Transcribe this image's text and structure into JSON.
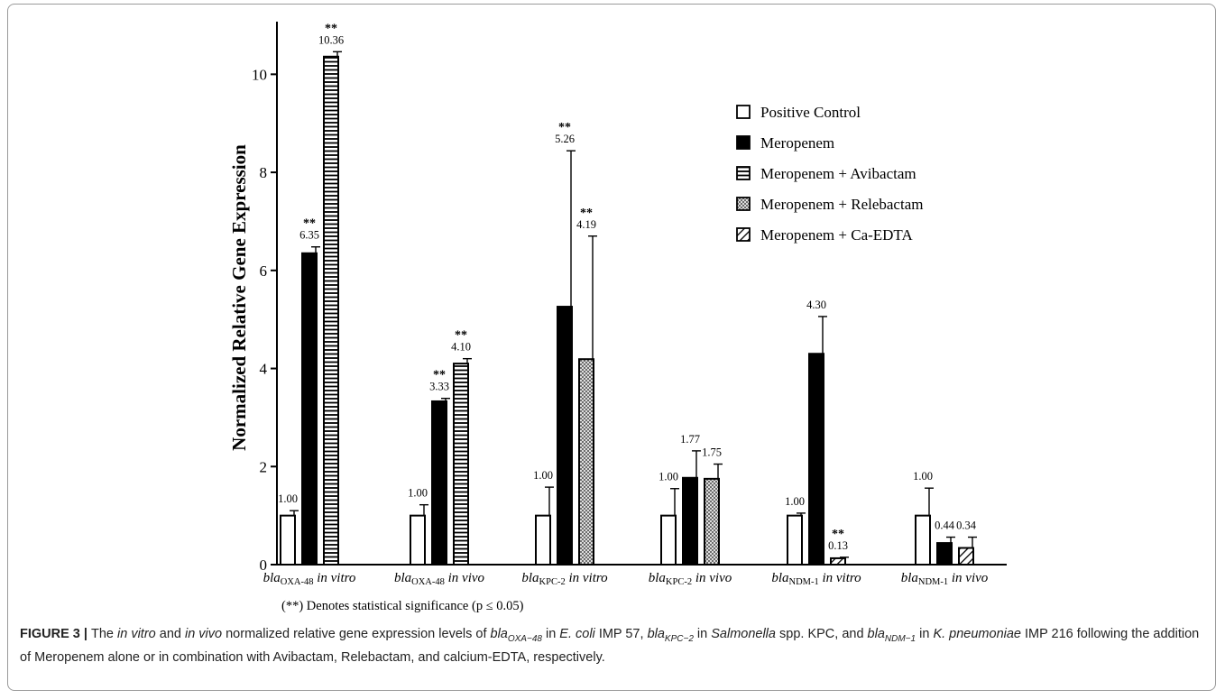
{
  "chart_data": {
    "type": "bar",
    "ylabel": "Normalized Relative Gene Expression",
    "ylim": [
      0,
      11
    ],
    "yticks": [
      0,
      2,
      4,
      6,
      8,
      10
    ],
    "grid": false,
    "legend_position": "top-right",
    "categories": [
      {
        "gene": "bla",
        "sub": "OXA-48",
        "cond": "in vitro"
      },
      {
        "gene": "bla",
        "sub": "OXA-48",
        "cond": "in vivo"
      },
      {
        "gene": "bla",
        "sub": "KPC-2",
        "cond": "in vitro"
      },
      {
        "gene": "bla",
        "sub": "KPC-2",
        "cond": "in vivo"
      },
      {
        "gene": "bla",
        "sub": "NDM-1",
        "cond": "in vitro"
      },
      {
        "gene": "bla",
        "sub": "NDM-1",
        "cond": "in vivo"
      }
    ],
    "series": [
      {
        "name": "Positive Control",
        "pattern": "empty"
      },
      {
        "name": "Meropenem",
        "pattern": "solid"
      },
      {
        "name": "Meropenem + Avibactam",
        "pattern": "hstripe"
      },
      {
        "name": "Meropenem + Relebactam",
        "pattern": "crosshatch"
      },
      {
        "name": "Meropenem + Ca-EDTA",
        "pattern": "diagonal"
      }
    ],
    "groups": [
      {
        "bars": [
          {
            "series": 0,
            "value": 1.0,
            "err": 0.1,
            "label": "1.00",
            "sig": ""
          },
          {
            "series": 1,
            "value": 6.35,
            "err": 0.13,
            "label": "6.35",
            "sig": "**"
          },
          {
            "series": 2,
            "value": 10.36,
            "err": 0.1,
            "label": "10.36",
            "sig": "**"
          }
        ]
      },
      {
        "bars": [
          {
            "series": 0,
            "value": 1.0,
            "err": 0.22,
            "label": "1.00",
            "sig": ""
          },
          {
            "series": 1,
            "value": 3.33,
            "err": 0.06,
            "label": "3.33",
            "sig": "**"
          },
          {
            "series": 2,
            "value": 4.1,
            "err": 0.1,
            "label": "4.10",
            "sig": "**"
          }
        ]
      },
      {
        "bars": [
          {
            "series": 0,
            "value": 1.0,
            "err": 0.58,
            "label": "1.00",
            "sig": ""
          },
          {
            "series": 1,
            "value": 5.26,
            "err": 3.18,
            "label": "5.26",
            "sig": "**"
          },
          {
            "series": 3,
            "value": 4.19,
            "err": 2.51,
            "label": "4.19",
            "sig": "**"
          }
        ]
      },
      {
        "bars": [
          {
            "series": 0,
            "value": 1.0,
            "err": 0.55,
            "label": "1.00",
            "sig": ""
          },
          {
            "series": 1,
            "value": 1.77,
            "err": 0.55,
            "label": "1.77",
            "sig": ""
          },
          {
            "series": 3,
            "value": 1.75,
            "err": 0.3,
            "label": "1.75",
            "sig": ""
          }
        ]
      },
      {
        "bars": [
          {
            "series": 0,
            "value": 1.0,
            "err": 0.05,
            "label": "1.00",
            "sig": ""
          },
          {
            "series": 1,
            "value": 4.3,
            "err": 0.76,
            "label": "4.30",
            "sig": ""
          },
          {
            "series": 4,
            "value": 0.13,
            "err": 0.02,
            "label": "0.13",
            "sig": "**"
          }
        ]
      },
      {
        "bars": [
          {
            "series": 0,
            "value": 1.0,
            "err": 0.56,
            "label": "1.00",
            "sig": ""
          },
          {
            "series": 1,
            "value": 0.44,
            "err": 0.12,
            "label": "0.44",
            "sig": ""
          },
          {
            "series": 4,
            "value": 0.34,
            "err": 0.22,
            "label": "0.34",
            "sig": ""
          }
        ]
      }
    ],
    "footnote": "(**) Denotes statistical significance (p ≤ 0.05)"
  },
  "caption": {
    "label": "FIGURE 3",
    "separator": " | ",
    "t1": "The ",
    "i1": "in vitro",
    "t2": " and ",
    "i2": "in vivo",
    "t3": " normalized relative gene expression levels of ",
    "g1": "bla",
    "s1": "OXA−48",
    "t4": " in ",
    "sp1": "E. coli",
    "t5": " IMP 57, ",
    "g2": "bla",
    "s2": "KPC−2",
    "t6": " in ",
    "sp2": "Salmonella",
    "t7": " spp. KPC, and ",
    "g3": "bla",
    "s3": "NDM−1",
    "t8": " in ",
    "sp3": "K. pneumoniae",
    "t9": " IMP 216 following the addition of Meropenem alone or in combination with Avibactam, Relebactam, and calcium-EDTA, respectively."
  }
}
